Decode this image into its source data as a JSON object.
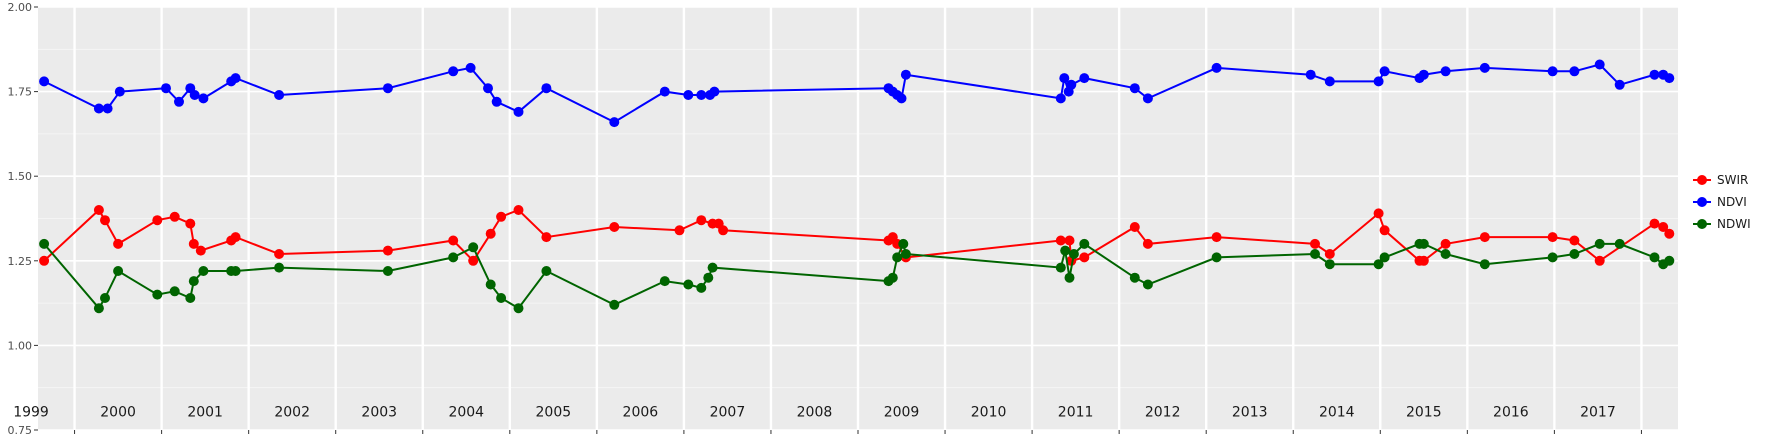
{
  "chart_data": {
    "type": "line",
    "ylim": [
      0.75,
      2.0
    ],
    "y_ticks": [
      "0.75",
      "1.00",
      "1.25",
      "1.50",
      "1.75",
      "2.00"
    ],
    "xlim": [
      1998.58,
      2017.42
    ],
    "year_labels": [
      "1999",
      "2000",
      "2001",
      "2002",
      "2003",
      "2004",
      "2005",
      "2006",
      "2007",
      "2008",
      "2009",
      "2010",
      "2011",
      "2012",
      "2013",
      "2014",
      "2015",
      "2016",
      "2017"
    ],
    "grid": true,
    "legend_position": "right",
    "series": [
      {
        "name": "SWIR",
        "color": "#ff0000",
        "points": [
          {
            "x": 1998.65,
            "y": 1.25
          },
          {
            "x": 1999.28,
            "y": 1.4
          },
          {
            "x": 1999.35,
            "y": 1.37
          },
          {
            "x": 1999.5,
            "y": 1.3
          },
          {
            "x": 1999.95,
            "y": 1.37
          },
          {
            "x": 2000.15,
            "y": 1.38
          },
          {
            "x": 2000.33,
            "y": 1.36
          },
          {
            "x": 2000.37,
            "y": 1.3
          },
          {
            "x": 2000.45,
            "y": 1.28
          },
          {
            "x": 2000.8,
            "y": 1.31
          },
          {
            "x": 2000.85,
            "y": 1.32
          },
          {
            "x": 2001.35,
            "y": 1.27
          },
          {
            "x": 2002.6,
            "y": 1.28
          },
          {
            "x": 2003.35,
            "y": 1.31
          },
          {
            "x": 2003.58,
            "y": 1.25
          },
          {
            "x": 2003.78,
            "y": 1.33
          },
          {
            "x": 2003.9,
            "y": 1.38
          },
          {
            "x": 2004.1,
            "y": 1.4
          },
          {
            "x": 2004.42,
            "y": 1.32
          },
          {
            "x": 2005.2,
            "y": 1.35
          },
          {
            "x": 2005.95,
            "y": 1.34
          },
          {
            "x": 2006.2,
            "y": 1.37
          },
          {
            "x": 2006.33,
            "y": 1.36
          },
          {
            "x": 2006.4,
            "y": 1.36
          },
          {
            "x": 2006.45,
            "y": 1.34
          },
          {
            "x": 2008.35,
            "y": 1.31
          },
          {
            "x": 2008.4,
            "y": 1.32
          },
          {
            "x": 2008.45,
            "y": 1.3
          },
          {
            "x": 2008.55,
            "y": 1.26
          },
          {
            "x": 2010.33,
            "y": 1.31
          },
          {
            "x": 2010.43,
            "y": 1.31
          },
          {
            "x": 2010.45,
            "y": 1.25
          },
          {
            "x": 2010.6,
            "y": 1.26
          },
          {
            "x": 2011.18,
            "y": 1.35
          },
          {
            "x": 2011.33,
            "y": 1.3
          },
          {
            "x": 2012.12,
            "y": 1.32
          },
          {
            "x": 2013.25,
            "y": 1.3
          },
          {
            "x": 2013.42,
            "y": 1.27
          },
          {
            "x": 2013.98,
            "y": 1.39
          },
          {
            "x": 2014.05,
            "y": 1.34
          },
          {
            "x": 2014.45,
            "y": 1.25
          },
          {
            "x": 2014.5,
            "y": 1.25
          },
          {
            "x": 2014.75,
            "y": 1.3
          },
          {
            "x": 2015.2,
            "y": 1.32
          },
          {
            "x": 2015.98,
            "y": 1.32
          },
          {
            "x": 2016.23,
            "y": 1.31
          },
          {
            "x": 2016.52,
            "y": 1.25
          },
          {
            "x": 2017.15,
            "y": 1.36
          },
          {
            "x": 2017.25,
            "y": 1.35
          },
          {
            "x": 2017.32,
            "y": 1.33
          }
        ]
      },
      {
        "name": "NDVI",
        "color": "#0000ff",
        "points": [
          {
            "x": 1998.65,
            "y": 1.78
          },
          {
            "x": 1999.28,
            "y": 1.7
          },
          {
            "x": 1999.38,
            "y": 1.7
          },
          {
            "x": 1999.52,
            "y": 1.75
          },
          {
            "x": 2000.05,
            "y": 1.76
          },
          {
            "x": 2000.2,
            "y": 1.72
          },
          {
            "x": 2000.33,
            "y": 1.76
          },
          {
            "x": 2000.38,
            "y": 1.74
          },
          {
            "x": 2000.48,
            "y": 1.73
          },
          {
            "x": 2000.8,
            "y": 1.78
          },
          {
            "x": 2000.85,
            "y": 1.79
          },
          {
            "x": 2001.35,
            "y": 1.74
          },
          {
            "x": 2002.6,
            "y": 1.76
          },
          {
            "x": 2003.35,
            "y": 1.81
          },
          {
            "x": 2003.55,
            "y": 1.82
          },
          {
            "x": 2003.75,
            "y": 1.76
          },
          {
            "x": 2003.85,
            "y": 1.72
          },
          {
            "x": 2004.1,
            "y": 1.69
          },
          {
            "x": 2004.42,
            "y": 1.76
          },
          {
            "x": 2005.2,
            "y": 1.66
          },
          {
            "x": 2005.78,
            "y": 1.75
          },
          {
            "x": 2006.05,
            "y": 1.74
          },
          {
            "x": 2006.2,
            "y": 1.74
          },
          {
            "x": 2006.3,
            "y": 1.74
          },
          {
            "x": 2006.35,
            "y": 1.75
          },
          {
            "x": 2008.35,
            "y": 1.76
          },
          {
            "x": 2008.4,
            "y": 1.75
          },
          {
            "x": 2008.45,
            "y": 1.74
          },
          {
            "x": 2008.5,
            "y": 1.73
          },
          {
            "x": 2008.55,
            "y": 1.8
          },
          {
            "x": 2010.33,
            "y": 1.73
          },
          {
            "x": 2010.37,
            "y": 1.79
          },
          {
            "x": 2010.42,
            "y": 1.75
          },
          {
            "x": 2010.45,
            "y": 1.77
          },
          {
            "x": 2010.6,
            "y": 1.79
          },
          {
            "x": 2011.18,
            "y": 1.76
          },
          {
            "x": 2011.33,
            "y": 1.73
          },
          {
            "x": 2012.12,
            "y": 1.82
          },
          {
            "x": 2013.2,
            "y": 1.8
          },
          {
            "x": 2013.42,
            "y": 1.78
          },
          {
            "x": 2013.98,
            "y": 1.78
          },
          {
            "x": 2014.05,
            "y": 1.81
          },
          {
            "x": 2014.45,
            "y": 1.79
          },
          {
            "x": 2014.5,
            "y": 1.8
          },
          {
            "x": 2014.75,
            "y": 1.81
          },
          {
            "x": 2015.2,
            "y": 1.82
          },
          {
            "x": 2015.98,
            "y": 1.81
          },
          {
            "x": 2016.23,
            "y": 1.81
          },
          {
            "x": 2016.52,
            "y": 1.83
          },
          {
            "x": 2016.75,
            "y": 1.77
          },
          {
            "x": 2017.15,
            "y": 1.8
          },
          {
            "x": 2017.25,
            "y": 1.8
          },
          {
            "x": 2017.32,
            "y": 1.79
          }
        ]
      },
      {
        "name": "NDWI",
        "color": "#006400",
        "points": [
          {
            "x": 1998.65,
            "y": 1.3
          },
          {
            "x": 1999.28,
            "y": 1.11
          },
          {
            "x": 1999.35,
            "y": 1.14
          },
          {
            "x": 1999.5,
            "y": 1.22
          },
          {
            "x": 1999.95,
            "y": 1.15
          },
          {
            "x": 2000.15,
            "y": 1.16
          },
          {
            "x": 2000.33,
            "y": 1.14
          },
          {
            "x": 2000.37,
            "y": 1.19
          },
          {
            "x": 2000.48,
            "y": 1.22
          },
          {
            "x": 2000.8,
            "y": 1.22
          },
          {
            "x": 2000.85,
            "y": 1.22
          },
          {
            "x": 2001.35,
            "y": 1.23
          },
          {
            "x": 2002.6,
            "y": 1.22
          },
          {
            "x": 2003.35,
            "y": 1.26
          },
          {
            "x": 2003.58,
            "y": 1.29
          },
          {
            "x": 2003.78,
            "y": 1.18
          },
          {
            "x": 2003.9,
            "y": 1.14
          },
          {
            "x": 2004.1,
            "y": 1.11
          },
          {
            "x": 2004.42,
            "y": 1.22
          },
          {
            "x": 2005.2,
            "y": 1.12
          },
          {
            "x": 2005.78,
            "y": 1.19
          },
          {
            "x": 2006.05,
            "y": 1.18
          },
          {
            "x": 2006.2,
            "y": 1.17
          },
          {
            "x": 2006.28,
            "y": 1.2
          },
          {
            "x": 2006.33,
            "y": 1.23
          },
          {
            "x": 2008.35,
            "y": 1.19
          },
          {
            "x": 2008.4,
            "y": 1.2
          },
          {
            "x": 2008.45,
            "y": 1.26
          },
          {
            "x": 2008.52,
            "y": 1.3
          },
          {
            "x": 2008.55,
            "y": 1.27
          },
          {
            "x": 2010.33,
            "y": 1.23
          },
          {
            "x": 2010.38,
            "y": 1.28
          },
          {
            "x": 2010.43,
            "y": 1.2
          },
          {
            "x": 2010.48,
            "y": 1.27
          },
          {
            "x": 2010.6,
            "y": 1.3
          },
          {
            "x": 2011.18,
            "y": 1.2
          },
          {
            "x": 2011.33,
            "y": 1.18
          },
          {
            "x": 2012.12,
            "y": 1.26
          },
          {
            "x": 2013.25,
            "y": 1.27
          },
          {
            "x": 2013.42,
            "y": 1.24
          },
          {
            "x": 2013.98,
            "y": 1.24
          },
          {
            "x": 2014.05,
            "y": 1.26
          },
          {
            "x": 2014.45,
            "y": 1.3
          },
          {
            "x": 2014.5,
            "y": 1.3
          },
          {
            "x": 2014.75,
            "y": 1.27
          },
          {
            "x": 2015.2,
            "y": 1.24
          },
          {
            "x": 2015.98,
            "y": 1.26
          },
          {
            "x": 2016.23,
            "y": 1.27
          },
          {
            "x": 2016.52,
            "y": 1.3
          },
          {
            "x": 2016.75,
            "y": 1.3
          },
          {
            "x": 2017.15,
            "y": 1.26
          },
          {
            "x": 2017.25,
            "y": 1.24
          },
          {
            "x": 2017.32,
            "y": 1.25
          }
        ]
      }
    ]
  }
}
